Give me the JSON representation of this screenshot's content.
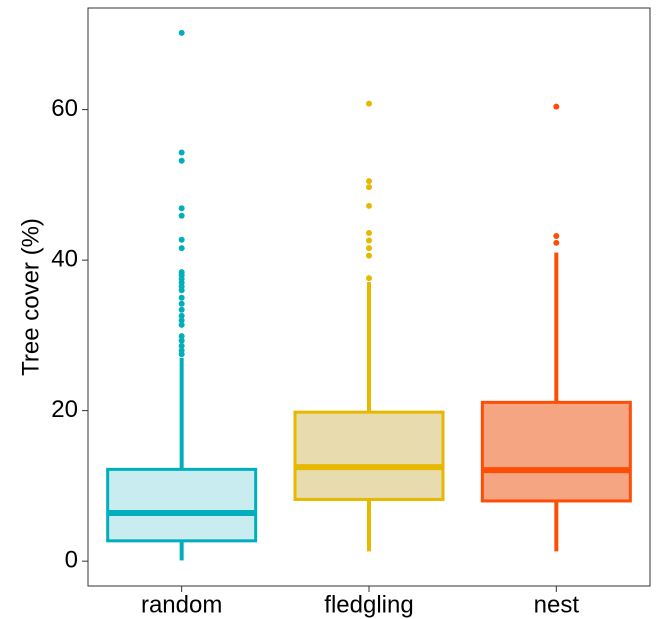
{
  "chart_data": {
    "type": "box",
    "y_label": "Tree cover (%)",
    "categories": [
      "random",
      "fledgling",
      "nest"
    ],
    "ylim": [
      -3.3,
      73.5
    ],
    "yticks": [
      0,
      20,
      40,
      60
    ],
    "grid": false,
    "series": [
      {
        "color": "#00AFBB",
        "fill": "#c8ecf0",
        "whisker_low": 0.1,
        "q1": 2.7,
        "median": 6.4,
        "q3": 12.2,
        "whisker_high": 27,
        "outliers": [
          70.2,
          54.3,
          53.2,
          46.9,
          45.9,
          42.7,
          41.6,
          38.4,
          38,
          37.5,
          37,
          36.5,
          36,
          35,
          34.2,
          33.4,
          32.6,
          32,
          31.4,
          29.9,
          29.3,
          28.6,
          28,
          27.5
        ]
      },
      {
        "color": "#E7B800",
        "fill": "#e8dcae",
        "whisker_low": 1.3,
        "q1": 8.2,
        "median": 12.5,
        "q3": 19.8,
        "whisker_high": 37.1,
        "outliers": [
          60.8,
          50.5,
          49.7,
          47.2,
          43.6,
          42.6,
          41.6,
          40.6,
          37.6
        ]
      },
      {
        "color": "#FC4E07",
        "fill": "#f5a582",
        "whisker_low": 1.3,
        "q1": 8.0,
        "median": 12.1,
        "q3": 21.1,
        "whisker_high": 41.0,
        "outliers": [
          60.4,
          43.2,
          42.3
        ]
      }
    ]
  }
}
